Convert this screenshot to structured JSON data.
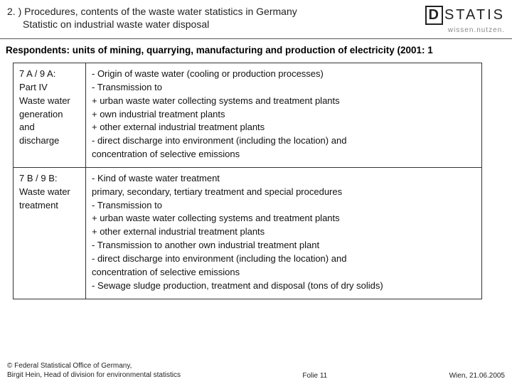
{
  "header": {
    "title": "2. ) Procedures, contents of the waste water statistics in Germany",
    "subtitle": "Statistic on industrial waste water disposal",
    "logo_d": "D",
    "logo_rest": "STATIS",
    "logo_tag": "wissen.nutzen."
  },
  "respondents": "Respondents: units of mining, quarrying, manufacturing and production of electricity (2001: 1",
  "table": {
    "row1": {
      "left": [
        "7 A / 9 A:",
        "Part IV",
        "Waste water",
        "generation",
        "and",
        "discharge"
      ],
      "right": [
        "- Origin of waste water (cooling or production processes)",
        "- Transmission to",
        "  + urban waste water collecting systems and treatment plants",
        "  + own industrial treatment plants",
        "  + other external industrial treatment plants",
        "- direct discharge into environment (including the location) and",
        "  concentration of selective emissions"
      ]
    },
    "row2": {
      "left": [
        "7 B / 9 B:",
        "Waste water",
        "treatment"
      ],
      "right": [
        "- Kind of waste water treatment",
        "  primary, secondary, tertiary treatment and special procedures",
        "- Transmission to",
        "  + urban waste water collecting systems and treatment plants",
        "  + other external industrial treatment plants",
        "- Transmission to another own industrial treatment plant",
        "- direct discharge into environment (including the location) and",
        "  concentration of selective emissions",
        "- Sewage sludge production, treatment and disposal (tons of dry solids)"
      ]
    }
  },
  "footer": {
    "left1": "© Federal Statistical Office of Germany,",
    "left2": "Birgit Hein, Head of division for environmental statistics",
    "center": "Folie 11",
    "right": "Wien, 21.06.2005"
  }
}
